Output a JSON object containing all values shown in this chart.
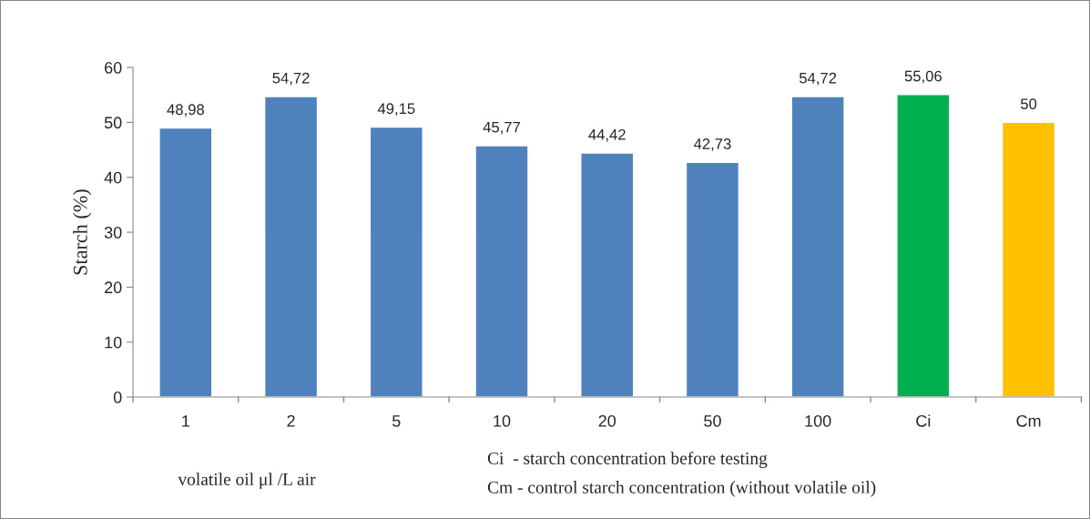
{
  "chart_data": {
    "type": "bar",
    "ylabel": "Starch (%)",
    "xlabel": "volatile oil μl /L air",
    "categories": [
      "1",
      "2",
      "5",
      "10",
      "20",
      "50",
      "100",
      "Ci",
      "Cm"
    ],
    "values": [
      48.98,
      54.72,
      49.15,
      45.77,
      44.42,
      42.73,
      54.72,
      55.06,
      50
    ],
    "colors": [
      "#4f81bd",
      "#4f81bd",
      "#4f81bd",
      "#4f81bd",
      "#4f81bd",
      "#4f81bd",
      "#4f81bd",
      "#00b050",
      "#ffc000"
    ],
    "value_labels": [
      "48,98",
      "54,72",
      "49,15",
      "45,77",
      "44,42",
      "42,73",
      "54,72",
      "55,06",
      "50"
    ],
    "ylim": [
      0,
      60
    ],
    "yticks": [
      0,
      10,
      20,
      30,
      40,
      50,
      60
    ],
    "grid": false,
    "legend": false,
    "annotations": [
      "Ci  - starch concentration before testing",
      "Cm - control starch concentration (without volatile oil)"
    ]
  }
}
